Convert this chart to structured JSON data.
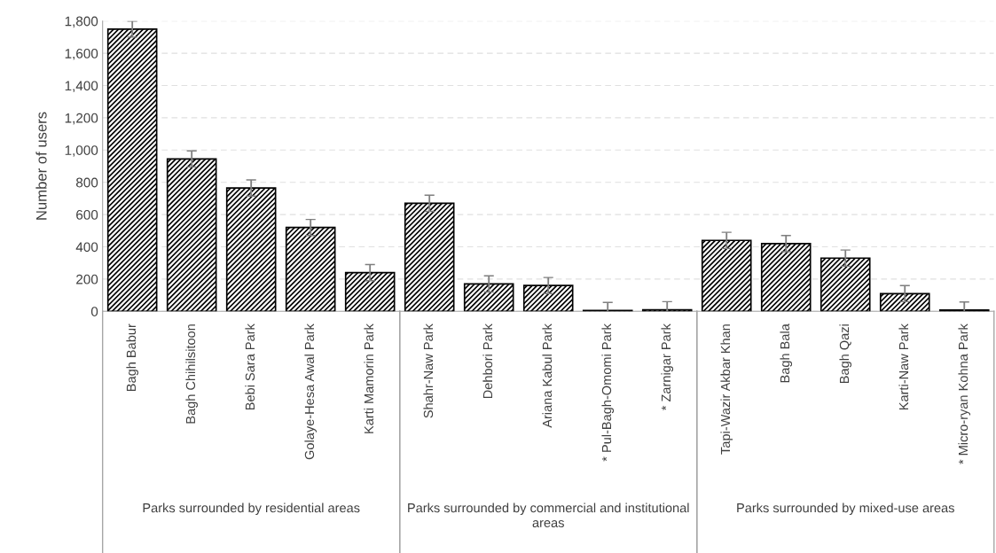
{
  "chart_data": {
    "type": "bar",
    "ylabel": "Number of users",
    "categories": [
      "Bagh Babur",
      "Bagh Chihilsitoon",
      "Bebi Sara Park",
      "Golaye-Hesa Awal Park",
      "Karti Mamorin Park",
      "Shahr-Naw Park",
      "Dehbori Park",
      "Ariana Kabul Park",
      "* Pul-Bagh-Omomi Park",
      "* Zarnigar Park",
      "Tapi-Wazir Akbar Khan",
      "Bagh Bala",
      "Bagh Qazi",
      "Karti-Naw Park",
      "* Micro-ryan Kohna Park"
    ],
    "values": [
      1750,
      945,
      765,
      520,
      240,
      670,
      170,
      160,
      5,
      10,
      440,
      420,
      330,
      110,
      8
    ],
    "errors": [
      50,
      50,
      50,
      50,
      50,
      50,
      50,
      50,
      50,
      50,
      50,
      50,
      50,
      50,
      50
    ],
    "color": "#000000",
    "ylim": [
      0,
      1800
    ],
    "yticks": [
      {
        "value": 0,
        "label": "0"
      },
      {
        "value": 200,
        "label": "200"
      },
      {
        "value": 400,
        "label": "400"
      },
      {
        "value": 600,
        "label": "600"
      },
      {
        "value": 800,
        "label": "800"
      },
      {
        "value": 1000,
        "label": "1,000"
      },
      {
        "value": 1200,
        "label": "1,200"
      },
      {
        "value": 1400,
        "label": "1,400"
      },
      {
        "value": 1600,
        "label": "1,600"
      },
      {
        "value": 1800,
        "label": "1,800"
      }
    ],
    "grid": "y",
    "annotations": [
      "Parks surrounded by residential areas",
      "Parks surrounded by commercial and institutional areas",
      "Parks surrounded by mixed-use areas"
    ]
  }
}
